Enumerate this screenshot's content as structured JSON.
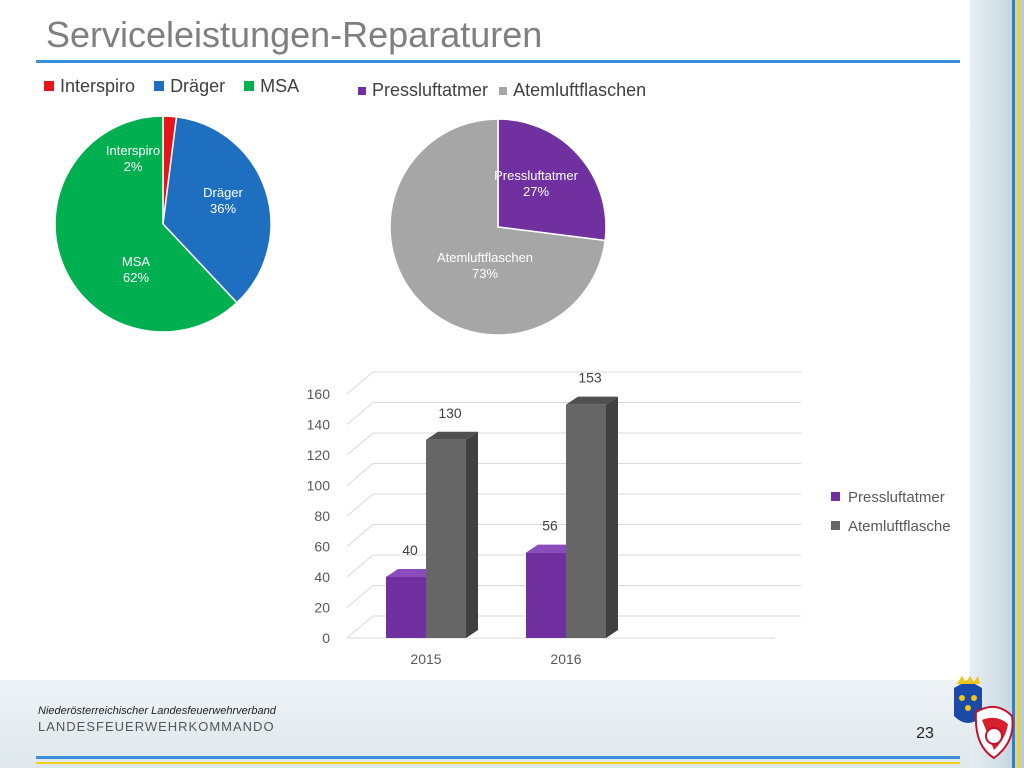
{
  "slide": {
    "title": "Serviceleistungen-Reparaturen",
    "page_number": "23",
    "footer_org": "Niederösterreichischer Landesfeuerwehrverband",
    "footer_command": "LANDESFEUERWEHRKOMMANDO"
  },
  "colors": {
    "interspiro": "#e8141c",
    "draeger": "#1f6fc0",
    "msa": "#00b050",
    "pressluftatmer": "#7030a0",
    "atemluftflaschen": "#a6a6a6",
    "bar_atemluftflasche": "#666666",
    "title_rule": "#3a8fd8"
  },
  "chart_data": [
    {
      "type": "pie",
      "legend_position": "top",
      "categories": [
        "Interspiro",
        "Dräger",
        "MSA"
      ],
      "values": [
        2,
        36,
        62
      ],
      "data_labels": [
        "2%",
        "36%",
        "62%"
      ]
    },
    {
      "type": "pie",
      "legend_position": "top",
      "categories": [
        "Pressluftatmer",
        "Atemluftflaschen"
      ],
      "values": [
        27,
        73
      ],
      "data_labels": [
        "27%",
        "73%"
      ]
    },
    {
      "type": "bar",
      "style": "3d-column",
      "legend_position": "right",
      "categories": [
        "2015",
        "2016"
      ],
      "series": [
        {
          "name": "Pressluftatmer",
          "values": [
            40,
            56
          ]
        },
        {
          "name": "Atemluftflasche",
          "values": [
            130,
            153
          ]
        }
      ],
      "ylim": [
        0,
        160
      ],
      "yticks": [
        "0",
        "20",
        "40",
        "60",
        "80",
        "100",
        "120",
        "140",
        "160"
      ],
      "grid": true
    }
  ]
}
